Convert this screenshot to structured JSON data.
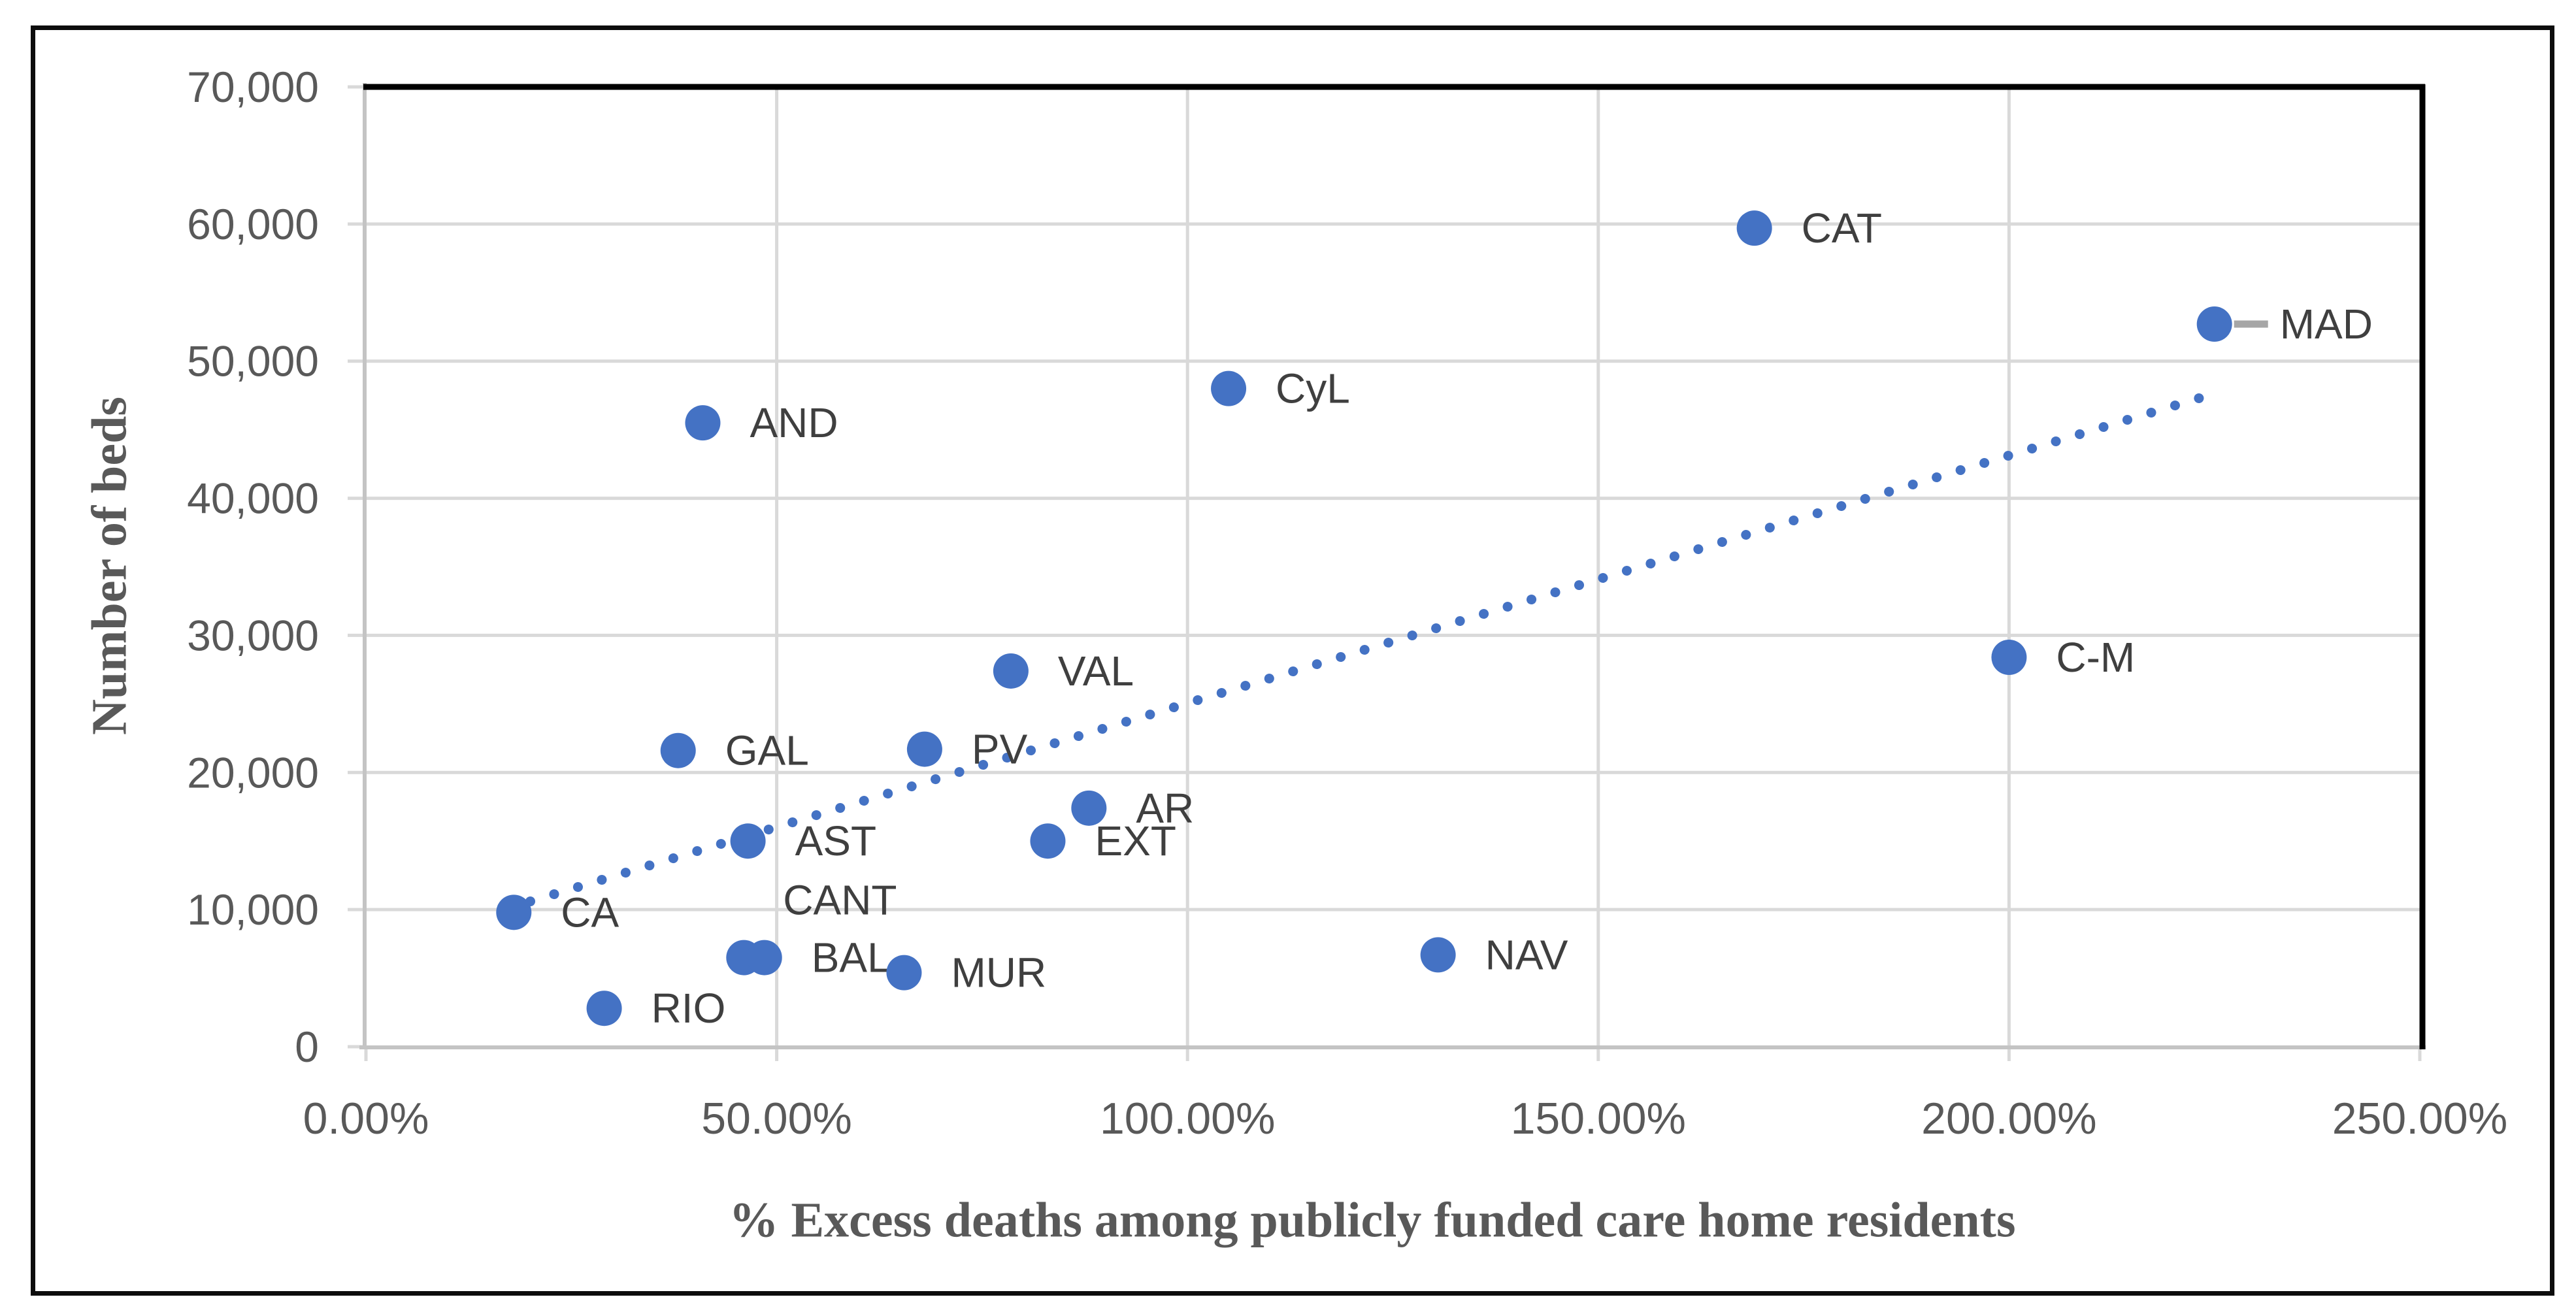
{
  "figure": {
    "background_color": "#ffffff",
    "frame_color": "#0d0d0d"
  },
  "chart_data": {
    "type": "scatter",
    "title": "",
    "xlabel": "% Excess deaths among publicly funded care home residents",
    "ylabel": "Number of beds",
    "xlim": [
      0,
      250
    ],
    "ylim": [
      0,
      70000
    ],
    "grid": true,
    "legend": "none",
    "x_tick_values": [
      0,
      50,
      100,
      150,
      200,
      250
    ],
    "x_tick_labels": [
      "0.00%",
      "50.00%",
      "100.00%",
      "150.00%",
      "200.00%",
      "250.00%"
    ],
    "y_tick_values": [
      0,
      10000,
      20000,
      30000,
      40000,
      50000,
      60000,
      70000
    ],
    "y_tick_labels": [
      "0",
      "10,000",
      "20,000",
      "30,000",
      "40,000",
      "50,000",
      "60,000",
      "70,000"
    ],
    "colors": {
      "point": "#4472c4",
      "trendline": "#4472c4",
      "gridline": "#d9d9d9",
      "axis_line": "#c4c4c4",
      "plot_border": "#000000",
      "tick_text": "#595959",
      "label_text": "#3f3f3f",
      "leader_line": "#a6a6a6"
    },
    "trendline": {
      "style": "dotted",
      "x1": 20,
      "y1": 10600,
      "x2": 224.8,
      "y2": 47600
    },
    "points": [
      {
        "label": "CA",
        "x": 18,
        "y": 9800
      },
      {
        "label": "RIO",
        "x": 29,
        "y": 2800
      },
      {
        "label": "GAL",
        "x": 38,
        "y": 21600
      },
      {
        "label": "AND",
        "x": 41,
        "y": 45500
      },
      {
        "label": "CANT",
        "x": 46,
        "y": 6500,
        "label_dx": 60,
        "label_dy": -88
      },
      {
        "label": "AST",
        "x": 46.5,
        "y": 15000
      },
      {
        "label": "BAL",
        "x": 48.5,
        "y": 6500
      },
      {
        "label": "MUR",
        "x": 65.5,
        "y": 5400
      },
      {
        "label": "PV",
        "x": 68,
        "y": 21700
      },
      {
        "label": "VAL",
        "x": 78.5,
        "y": 27400
      },
      {
        "label": "EXT",
        "x": 83,
        "y": 15000
      },
      {
        "label": "AR",
        "x": 88,
        "y": 17400
      },
      {
        "label": "CyL",
        "x": 105,
        "y": 48000
      },
      {
        "label": "NAV",
        "x": 130.5,
        "y": 6700
      },
      {
        "label": "CAT",
        "x": 169,
        "y": 59700
      },
      {
        "label": "C-M",
        "x": 200,
        "y": 28400
      },
      {
        "label": "MAD",
        "x": 225,
        "y": 52700,
        "label_dx": 100,
        "leader": true
      }
    ]
  }
}
